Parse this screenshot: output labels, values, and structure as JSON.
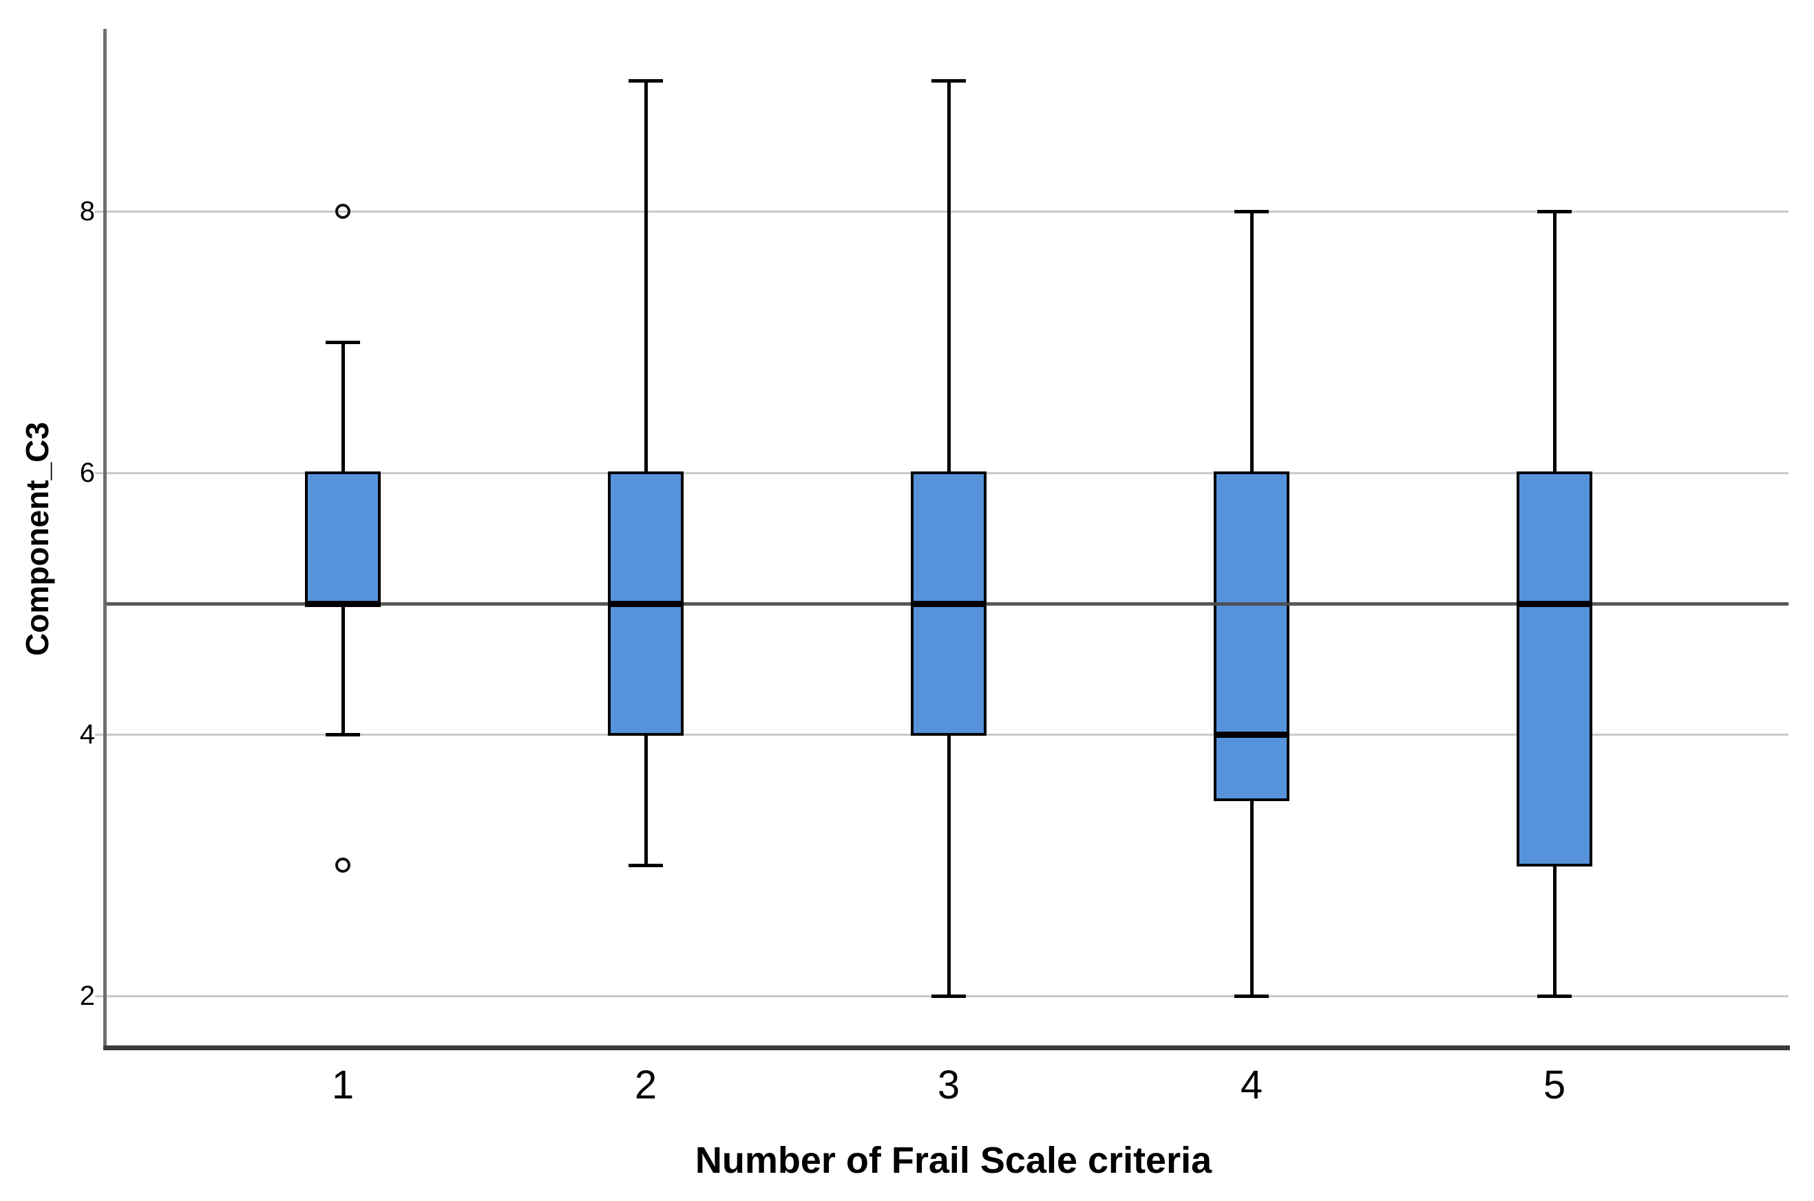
{
  "chart_data": {
    "type": "box",
    "xlabel": "Number of Frail Scale criteria",
    "ylabel": "Component_C3",
    "categories": [
      "1",
      "2",
      "3",
      "4",
      "5"
    ],
    "yticks": [
      8,
      6,
      4,
      2
    ],
    "gridlines": [
      8,
      6,
      4,
      2
    ],
    "reference_line": 5,
    "ylim": [
      1.6,
      9.4
    ],
    "legend": "none",
    "grid": "horizontal",
    "boxes": [
      {
        "category": "1",
        "whisker_low": 4,
        "q1": 5,
        "median": 5,
        "q3": 6,
        "whisker_high": 7,
        "outliers": [
          8,
          3
        ]
      },
      {
        "category": "2",
        "whisker_low": 3,
        "q1": 4,
        "median": 5,
        "q3": 6,
        "whisker_high": 9,
        "outliers": []
      },
      {
        "category": "3",
        "whisker_low": 2,
        "q1": 4,
        "median": 5,
        "q3": 6,
        "whisker_high": 9,
        "outliers": []
      },
      {
        "category": "4",
        "whisker_low": 2,
        "q1": 3.5,
        "median": 4,
        "q3": 6,
        "whisker_high": 8,
        "outliers": []
      },
      {
        "category": "5",
        "whisker_low": 2,
        "q1": 3,
        "median": 5,
        "q3": 6,
        "whisker_high": 8,
        "outliers": []
      }
    ],
    "colors": {
      "box_fill": "#5693db",
      "box_border": "#000000",
      "median": "#000000",
      "whisker": "#000000",
      "outlier_stroke": "#111111",
      "gridline": "#c9c9c9",
      "reference_line": "#4a4a4a",
      "y_axis_line": "#6e6e6e",
      "x_axis_line": "#3a3a3a",
      "text": "#000000",
      "background": "#ffffff"
    }
  }
}
